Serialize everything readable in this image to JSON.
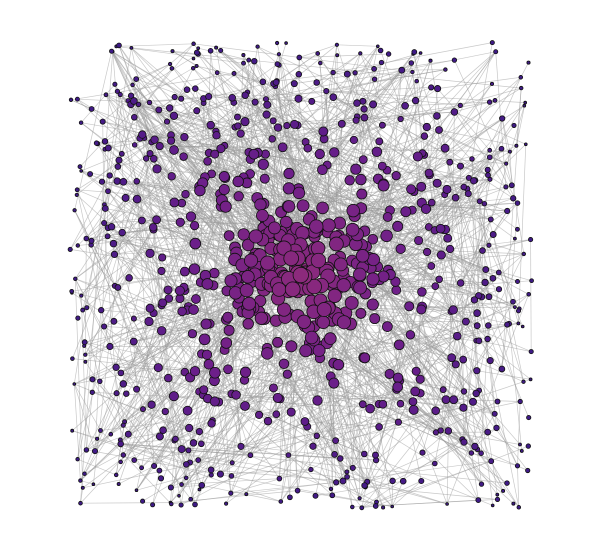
{
  "graph": {
    "edge_color": "#9a9a9a",
    "node_outline_color": "#111111",
    "center_node_color": "#8c2a7c",
    "mid_node_color": "#6d1f8a",
    "outer_node_color": "#3e1a86",
    "has_labels": false,
    "has_axes": false
  }
}
